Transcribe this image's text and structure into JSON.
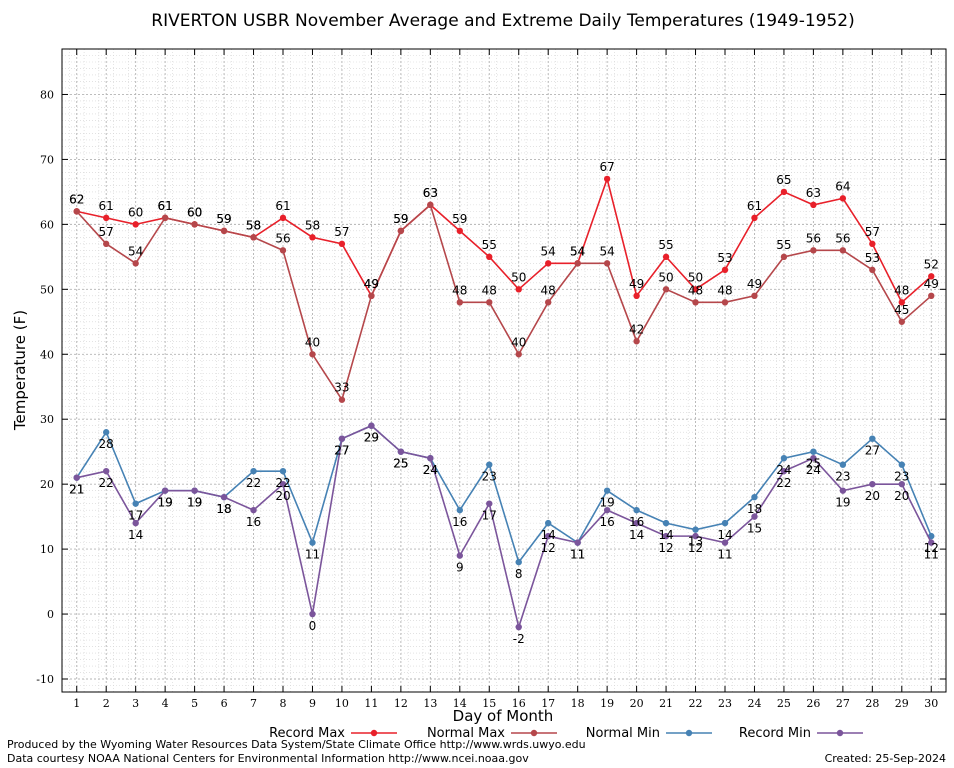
{
  "chart_data": {
    "type": "line",
    "title": "RIVERTON USBR November Average and Extreme Daily Temperatures (1949-1952)",
    "xlabel": "Day of Month",
    "ylabel": "Temperature (F)",
    "ylim": [
      -12,
      87
    ],
    "yticks": [
      -10,
      0,
      10,
      20,
      30,
      40,
      50,
      60,
      70,
      80
    ],
    "grid": true,
    "legend_position": "bottom",
    "x": [
      1,
      2,
      3,
      4,
      5,
      6,
      7,
      8,
      9,
      10,
      11,
      12,
      13,
      14,
      15,
      16,
      17,
      18,
      19,
      20,
      21,
      22,
      23,
      24,
      25,
      26,
      27,
      28,
      29,
      30
    ],
    "series": [
      {
        "name": "Record Max",
        "color": "#e8202a",
        "label_position": "above",
        "values": [
          62,
          61,
          60,
          61,
          60,
          59,
          58,
          61,
          58,
          57,
          49,
          59,
          63,
          59,
          55,
          50,
          54,
          54,
          67,
          49,
          55,
          50,
          53,
          61,
          65,
          63,
          64,
          57,
          48,
          52
        ]
      },
      {
        "name": "Normal Max",
        "color": "#b5474b",
        "label_position": "above",
        "values": [
          62,
          57,
          54,
          61,
          60,
          59,
          58,
          56,
          40,
          33,
          49,
          59,
          63,
          48,
          48,
          40,
          48,
          54,
          54,
          42,
          50,
          48,
          48,
          49,
          55,
          56,
          56,
          53,
          45,
          49
        ]
      },
      {
        "name": "Normal Min",
        "color": "#4682b4",
        "label_position": "below",
        "values": [
          21,
          28,
          17,
          19,
          19,
          18,
          22,
          22,
          11,
          27,
          29,
          25,
          24,
          16,
          23,
          8,
          14,
          11,
          19,
          16,
          14,
          13,
          14,
          18,
          24,
          25,
          23,
          27,
          23,
          12
        ]
      },
      {
        "name": "Record Min",
        "color": "#7b559b",
        "label_position": "below",
        "values": [
          21,
          22,
          14,
          19,
          19,
          18,
          16,
          20,
          0,
          27,
          29,
          25,
          24,
          9,
          17,
          -2,
          12,
          11,
          16,
          14,
          12,
          12,
          11,
          15,
          22,
          24,
          19,
          20,
          20,
          11
        ]
      }
    ]
  },
  "footer": {
    "produced_by": "Produced by the Wyoming Water Resources Data System/State Climate Office http://www.wrds.uwyo.edu",
    "data_courtesy": "Data courtesy NOAA National Centers for Environmental Information http://www.ncei.noaa.gov",
    "created": "Created:  25-Sep-2024"
  }
}
